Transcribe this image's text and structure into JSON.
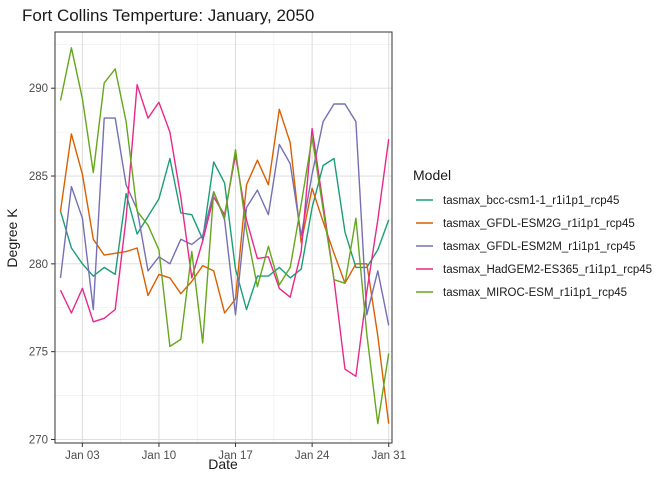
{
  "chart_data": {
    "type": "line",
    "title": "Fort Collins Temperture: January, 2050",
    "xlabel": "Date",
    "ylabel": "Degree K",
    "x": [
      1,
      2,
      3,
      4,
      5,
      6,
      7,
      8,
      9,
      10,
      11,
      12,
      13,
      14,
      15,
      16,
      17,
      18,
      19,
      20,
      21,
      22,
      23,
      24,
      25,
      26,
      27,
      28,
      29,
      30,
      31
    ],
    "xlim": [
      0.5,
      31.3
    ],
    "ylim": [
      269.8,
      293.2
    ],
    "x_ticks": [
      {
        "value": 3,
        "label": "Jan 03"
      },
      {
        "value": 10,
        "label": "Jan 10"
      },
      {
        "value": 17,
        "label": "Jan 17"
      },
      {
        "value": 24,
        "label": "Jan 24"
      },
      {
        "value": 31,
        "label": "Jan 31"
      }
    ],
    "y_ticks": [
      {
        "value": 270,
        "label": "270"
      },
      {
        "value": 275,
        "label": "275"
      },
      {
        "value": 280,
        "label": "280"
      },
      {
        "value": 285,
        "label": "285"
      },
      {
        "value": 290,
        "label": "290"
      }
    ],
    "legend_title": "Model",
    "legend_position": "right",
    "grid": true,
    "series": [
      {
        "name": "tasmax_bcc-csm1-1_r1i1p1_rcp45",
        "color": "#1b9e77",
        "values": [
          283.0,
          280.9,
          280.0,
          279.3,
          279.8,
          279.4,
          284.0,
          281.7,
          282.7,
          283.7,
          286.0,
          282.9,
          282.8,
          281.4,
          285.8,
          284.6,
          279.7,
          277.4,
          279.3,
          279.3,
          279.8,
          279.2,
          279.7,
          283.2,
          285.6,
          286.0,
          281.8,
          279.8,
          279.8,
          280.8,
          282.5
        ]
      },
      {
        "name": "tasmax_GFDL-ESM2G_r1i1p1_rcp45",
        "color": "#d95f02",
        "values": [
          283.0,
          287.4,
          285.1,
          281.4,
          280.5,
          280.6,
          280.7,
          280.9,
          278.2,
          279.4,
          279.2,
          278.3,
          279.0,
          279.9,
          279.6,
          277.2,
          278.0,
          284.5,
          285.9,
          284.5,
          288.8,
          286.9,
          281.2,
          284.3,
          282.4,
          280.6,
          278.9,
          280.0,
          280.0,
          275.9,
          270.9
        ]
      },
      {
        "name": "tasmax_GFDL-ESM2M_r1i1p1_rcp45",
        "color": "#7570b3",
        "values": [
          279.2,
          284.4,
          282.6,
          277.4,
          288.3,
          288.3,
          284.5,
          283.1,
          279.6,
          280.4,
          280.0,
          281.4,
          281.1,
          281.6,
          284.1,
          282.5,
          277.1,
          283.2,
          284.2,
          282.8,
          286.8,
          285.7,
          281.6,
          285.1,
          288.1,
          289.1,
          289.1,
          288.1,
          277.1,
          279.6,
          276.5
        ]
      },
      {
        "name": "tasmax_HadGEM2-ES365_r1i1p1_rcp45",
        "color": "#e7298a",
        "values": [
          278.5,
          277.2,
          278.6,
          276.7,
          276.9,
          277.4,
          282.6,
          290.2,
          288.3,
          289.2,
          287.5,
          283.8,
          279.2,
          281.3,
          283.8,
          282.8,
          286.2,
          282.5,
          280.3,
          280.4,
          278.6,
          278.1,
          280.7,
          287.7,
          283.4,
          279.1,
          274.0,
          273.6,
          278.4,
          282.5,
          287.1
        ]
      },
      {
        "name": "tasmax_MIROC-ESM_r1i1p1_rcp45",
        "color": "#66a61e",
        "values": [
          289.3,
          292.3,
          289.4,
          285.2,
          290.3,
          291.1,
          288.1,
          283.0,
          282.2,
          280.8,
          275.3,
          275.7,
          280.7,
          275.5,
          284.1,
          282.6,
          286.5,
          281.9,
          278.7,
          281.0,
          278.8,
          279.8,
          283.4,
          287.2,
          283.1,
          279.1,
          278.9,
          282.6,
          276.0,
          270.9,
          274.9
        ]
      }
    ]
  }
}
